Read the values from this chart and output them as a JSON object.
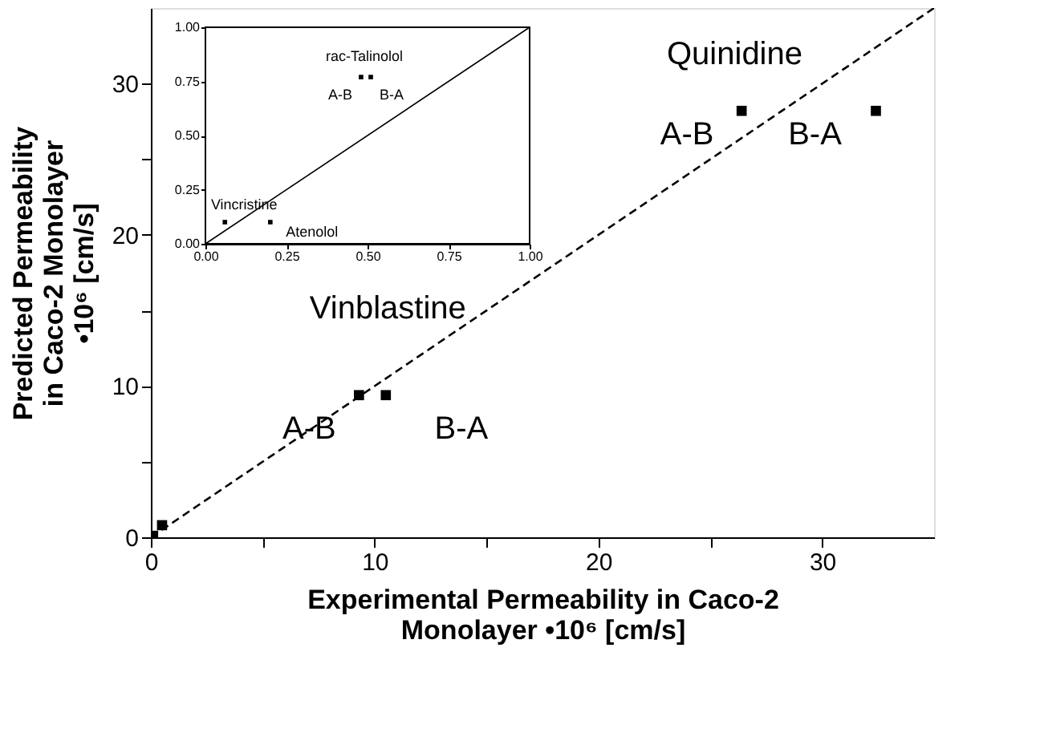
{
  "chart_data": [
    {
      "type": "scatter",
      "xlabel": "Experimental Permeability in Caco-2 Monolayer •10⁶ [cm/s]",
      "ylabel": "Predicted Permeability in Caco-2 Monolayer •10⁶ [cm/s]",
      "xlim": [
        0,
        35
      ],
      "ylim": [
        0,
        35
      ],
      "xticks": [
        0,
        {
          "value": 5,
          "label": null
        },
        10,
        {
          "value": 15,
          "label": null
        },
        20,
        {
          "value": 25,
          "label": null
        },
        30
      ],
      "yticks": [
        0,
        {
          "value": 5,
          "label": null
        },
        10,
        {
          "value": 15,
          "label": null
        },
        20,
        {
          "value": 25,
          "label": null
        },
        30
      ],
      "grid": false,
      "series": [
        {
          "color": "#000000",
          "marker": "square",
          "x": [
            26.4,
            32.4,
            9.3,
            10.5,
            0.1,
            0.5
          ],
          "values": [
            28.2,
            28.2,
            9.4,
            9.4,
            0.1,
            0.8
          ]
        },
        {
          "type": "line",
          "color": "#000000",
          "line_style": "dashed",
          "x": [
            0,
            35
          ],
          "values": [
            0,
            35
          ]
        }
      ],
      "annotations": [
        {
          "text": "Quinidine",
          "x": 32.4,
          "y": 28.2
        },
        {
          "text": "A-B",
          "x": 26.4,
          "y": 28.2
        },
        {
          "text": "B-A",
          "x": 32.4,
          "y": 28.2
        },
        {
          "text": "Vinblastine",
          "x": 9.3,
          "y": 9.4
        },
        {
          "text": "A-B",
          "x": 9.3,
          "y": 9.4
        },
        {
          "text": "B-A",
          "x": 10.5,
          "y": 9.4
        }
      ]
    },
    {
      "type": "scatter",
      "xlim": [
        0,
        1
      ],
      "ylim": [
        0,
        1
      ],
      "xticks": [
        {
          "value": 0,
          "label": "0.00"
        },
        {
          "value": 0.25,
          "label": "0.25"
        },
        {
          "value": 0.5,
          "label": "0.50"
        },
        {
          "value": 0.75,
          "label": "0.75"
        },
        {
          "value": 1,
          "label": "1.00"
        }
      ],
      "yticks": [
        {
          "value": 0,
          "label": "0.00"
        },
        {
          "value": 0.25,
          "label": "0.25"
        },
        {
          "value": 0.5,
          "label": "0.50"
        },
        {
          "value": 0.75,
          "label": "0.75"
        },
        {
          "value": 1,
          "label": "1.00"
        }
      ],
      "grid": false,
      "series": [
        {
          "color": "#000000",
          "marker": "square",
          "x": [
            0.06,
            0.2,
            0.48,
            0.51
          ],
          "values": [
            0.1,
            0.1,
            0.77,
            0.77
          ]
        },
        {
          "type": "line",
          "color": "#000000",
          "line_style": "solid",
          "x": [
            0,
            1
          ],
          "values": [
            0,
            1
          ]
        }
      ],
      "annotations": [
        {
          "text": "rac-Talinolol",
          "x": 0.48,
          "y": 0.77
        },
        {
          "text": "A-B",
          "x": 0.48,
          "y": 0.77
        },
        {
          "text": "B-A",
          "x": 0.51,
          "y": 0.77
        },
        {
          "text": "Vincristine",
          "x": 0.06,
          "y": 0.1
        },
        {
          "text": "Atenolol",
          "x": 0.2,
          "y": 0.1
        }
      ]
    }
  ]
}
